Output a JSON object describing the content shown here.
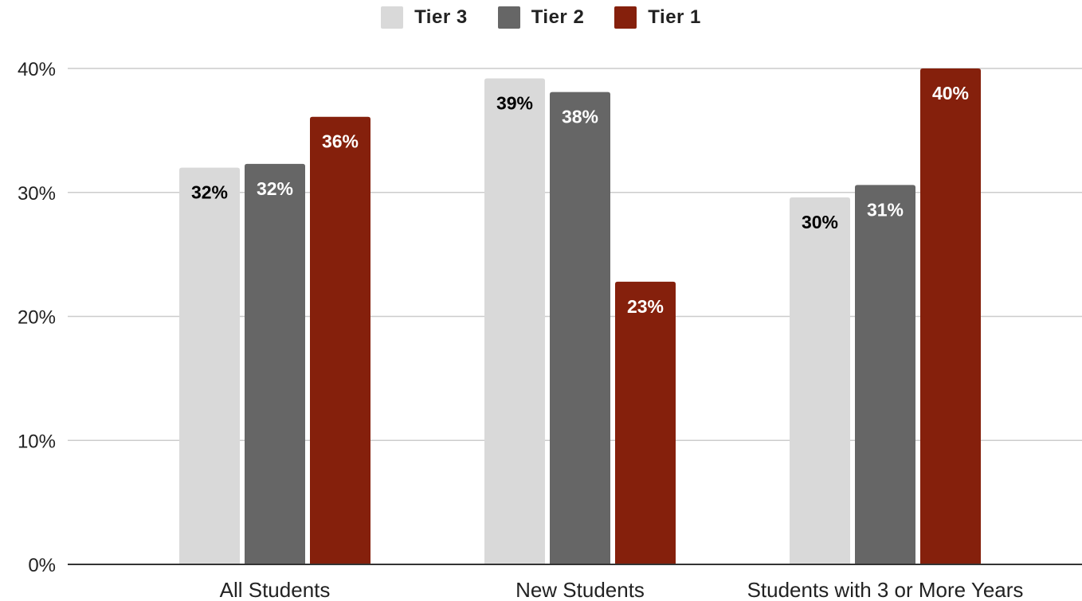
{
  "chart_data": {
    "type": "bar",
    "categories": [
      "All Students",
      "New Students",
      "Students with 3 or More Years"
    ],
    "series": [
      {
        "name": "Tier 3",
        "values": [
          32,
          39,
          30
        ],
        "labels": [
          "32%",
          "39%",
          "30%"
        ],
        "value_heights": [
          32,
          39.2,
          29.6
        ],
        "color": "#d9d9d9",
        "label_color": "#000000"
      },
      {
        "name": "Tier 2",
        "values": [
          32,
          38,
          31
        ],
        "labels": [
          "32%",
          "38%",
          "31%"
        ],
        "value_heights": [
          32.3,
          38.1,
          30.6
        ],
        "color": "#666666",
        "label_color": "#ffffff"
      },
      {
        "name": "Tier 1",
        "values": [
          36,
          23,
          40
        ],
        "labels": [
          "36%",
          "23%",
          "40%"
        ],
        "value_heights": [
          36.1,
          22.8,
          40.0
        ],
        "color": "#85200c",
        "label_color": "#ffffff"
      }
    ],
    "y_ticks": [
      "0%",
      "10%",
      "20%",
      "30%",
      "40%"
    ],
    "y_tick_values": [
      0,
      10,
      20,
      30,
      40
    ],
    "ylim": [
      0,
      40
    ],
    "grid": true,
    "legend_position": "top-center",
    "title": "",
    "xlabel": "",
    "ylabel": "",
    "gridline_color": "#cccccc",
    "axis_color": "#333333"
  }
}
